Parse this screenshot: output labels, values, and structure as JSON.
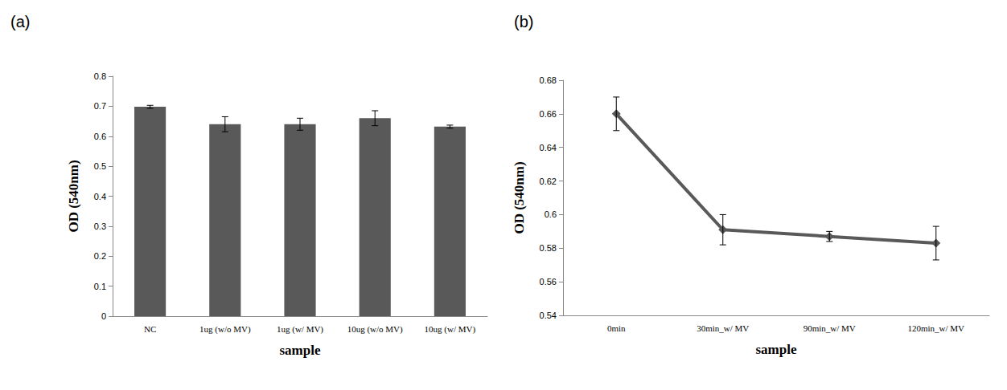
{
  "chart_data": [
    {
      "type": "bar",
      "title": "(a)",
      "xlabel": "sample",
      "ylabel": "OD (540nm)",
      "categories": [
        "NC",
        "1ug (w/o MV)",
        "1ug (w/ MV)",
        "10ug (w/o MV)",
        "10ug (w/ MV)"
      ],
      "values": [
        0.698,
        0.64,
        0.64,
        0.66,
        0.632
      ],
      "errors": [
        0.005,
        0.025,
        0.02,
        0.025,
        0.005
      ],
      "color": "#595959",
      "ylim": [
        0,
        0.8
      ],
      "yticks": [
        0,
        0.1,
        0.2,
        0.3,
        0.4,
        0.5,
        0.6,
        0.7,
        0.8
      ],
      "grid": false
    },
    {
      "type": "line",
      "title": "(b)",
      "xlabel": "sample",
      "ylabel": "OD (540nm)",
      "categories": [
        "0min",
        "30min_w/ MV",
        "90min_w/ MV",
        "120min_w/ MV"
      ],
      "values": [
        0.66,
        0.591,
        0.587,
        0.583
      ],
      "errors": [
        0.01,
        0.009,
        0.003,
        0.01
      ],
      "color": "#595959",
      "marker": "diamond",
      "line_style": "solid",
      "ylim": [
        0.54,
        0.68
      ],
      "yticks": [
        0.54,
        0.56,
        0.58,
        0.6,
        0.62,
        0.64,
        0.66,
        0.68
      ],
      "grid": false
    }
  ]
}
